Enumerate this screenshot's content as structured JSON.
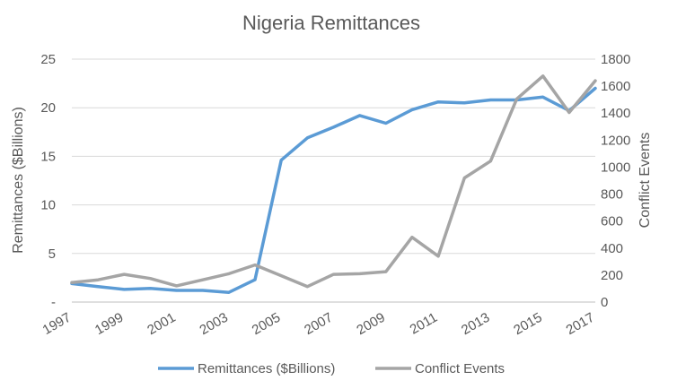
{
  "chart_data": {
    "type": "line",
    "title": "Nigeria Remittances",
    "xlabel": "",
    "ylabel": "Remittances ($Billions)",
    "y2label": "Conflict Events",
    "x": [
      1997,
      1998,
      1999,
      2000,
      2001,
      2002,
      2003,
      2004,
      2005,
      2006,
      2007,
      2008,
      2009,
      2010,
      2011,
      2012,
      2013,
      2014,
      2015,
      2016,
      2017
    ],
    "x_tick_labels": [
      "1997",
      "1999",
      "2001",
      "2003",
      "2005",
      "2007",
      "2009",
      "2011",
      "2013",
      "2015",
      "2017"
    ],
    "ylim": [
      0,
      25
    ],
    "y_tick_labels": [
      "-",
      "5",
      "10",
      "15",
      "20",
      "25"
    ],
    "y2lim": [
      0,
      1800
    ],
    "y2_tick_labels": [
      "0",
      "200",
      "400",
      "600",
      "800",
      "1000",
      "1200",
      "1400",
      "1600",
      "1800"
    ],
    "grid": true,
    "legend_position": "bottom",
    "series": [
      {
        "name": "Remittances ($Billions)",
        "axis": "left",
        "color": "#5B9BD5",
        "values": [
          1.9,
          1.6,
          1.3,
          1.4,
          1.2,
          1.2,
          1.0,
          2.3,
          14.6,
          16.9,
          18.0,
          19.2,
          18.4,
          19.8,
          20.6,
          20.5,
          20.8,
          20.8,
          21.1,
          19.7,
          22.0
        ]
      },
      {
        "name": "Conflict Events",
        "axis": "right",
        "color": "#A5A5A5",
        "values": [
          145,
          165,
          205,
          175,
          120,
          165,
          210,
          275,
          195,
          115,
          205,
          210,
          225,
          480,
          340,
          920,
          1045,
          1505,
          1675,
          1405,
          1640
        ]
      }
    ]
  }
}
